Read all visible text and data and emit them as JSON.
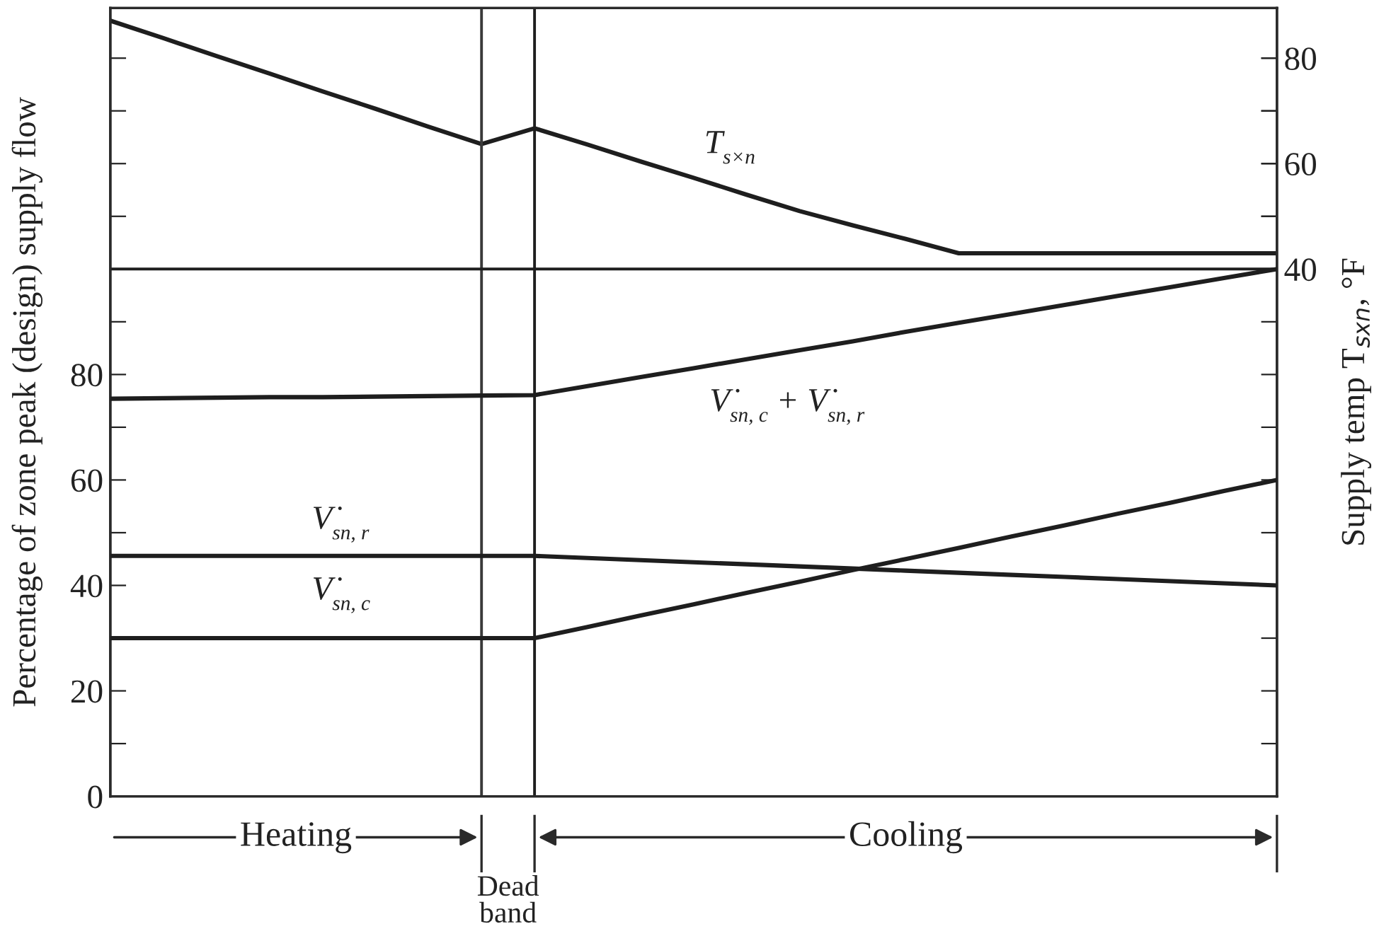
{
  "chart_data": {
    "type": "line",
    "ylabel": "Percentage of zone peak (design) supply flow",
    "y2label": "Supply temp T$_{sxn}$, °F",
    "categories": [
      null,
      null,
      null,
      null,
      null,
      null,
      null,
      null,
      null,
      null,
      null,
      null,
      null,
      null,
      null,
      null,
      null,
      null,
      null,
      null,
      null,
      null,
      null
    ],
    "ylim": [
      0,
      149.5
    ],
    "yticks": [
      0,
      {
        "value": 10,
        "label": null
      },
      20,
      {
        "value": 30,
        "label": null
      },
      40,
      {
        "value": 50,
        "label": null
      },
      60,
      {
        "value": 70,
        "label": null
      },
      80,
      {
        "value": 90,
        "label": null
      },
      {
        "value": 110,
        "label": null
      },
      {
        "value": 120,
        "label": null
      },
      {
        "value": 130,
        "label": null
      },
      {
        "value": 140,
        "label": null
      }
    ],
    "y2lim": [
      -60,
      89.5
    ],
    "y2ticks": [
      40,
      {
        "value": 50,
        "label": null
      },
      60,
      {
        "value": 70,
        "label": null
      },
      80
    ],
    "tick_labels": "y",
    "grid": false,
    "legend": false,
    "marker": "none",
    "line_style": "solid",
    "series": [
      {
        "name": "T$_{s×n}$",
        "color": "#1e1e1e",
        "axis": "y2",
        "values": [
          87.1,
          83.8,
          80.4,
          77.1,
          73.7,
          70.4,
          67.0,
          63.7,
          66.7,
          63.6,
          60.4,
          57.3,
          54.1,
          51.0,
          48.3,
          45.7,
          43.0,
          43.0,
          43.0,
          43.0,
          43.0,
          43.0,
          43.0
        ]
      },
      {
        "name": "V̇$_{sn, c}$ + V̇$_{sn, r}$",
        "color": "#1e1e1e",
        "values": [
          75.4,
          75.5,
          75.6,
          75.7,
          75.7,
          75.8,
          75.9,
          76.0,
          76.1,
          77.8,
          79.5,
          81.2,
          82.9,
          84.6,
          86.3,
          88.1,
          89.8,
          91.5,
          93.2,
          94.9,
          96.6,
          98.3,
          100
        ]
      },
      {
        "name": "V̇$_{sn, r}$",
        "color": "#1e1e1e",
        "values": [
          45.6,
          45.6,
          45.6,
          45.6,
          45.6,
          45.6,
          45.6,
          45.6,
          45.6,
          45.2,
          44.8,
          44.4,
          44.0,
          43.6,
          43.2,
          42.8,
          42.4,
          42.0,
          41.6,
          41.2,
          40.8,
          40.4,
          40.0
        ]
      },
      {
        "name": "V̇$_{sn, c}$",
        "color": "#1e1e1e",
        "values": [
          30,
          30,
          30,
          30,
          30,
          30,
          30,
          30,
          30,
          32.1,
          34.3,
          36.4,
          38.6,
          40.7,
          42.9,
          45.0,
          47.1,
          49.3,
          51.4,
          53.6,
          55.7,
          57.9,
          60
        ]
      }
    ],
    "ref_lines": [
      {
        "axis": "y",
        "value": 100,
        "color": "#1e1e1e"
      }
    ],
    "annotations": [
      "Heating",
      "Dead\nband",
      "Cooling"
    ]
  }
}
